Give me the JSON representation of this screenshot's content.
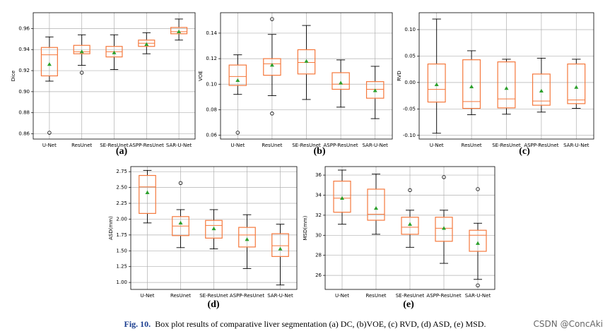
{
  "chart_data": [
    {
      "type": "box",
      "ylabel": "Dice",
      "label": "(a)",
      "categories": [
        "U-Net",
        "ResUnet",
        "SE-ResUnet",
        "ASPP-ResUnet",
        "SAR-U-Net"
      ],
      "whislo": [
        0.91,
        0.925,
        0.921,
        0.936,
        0.949
      ],
      "q1": [
        0.915,
        0.936,
        0.933,
        0.943,
        0.955
      ],
      "median": [
        0.935,
        0.938,
        0.938,
        0.946,
        0.957
      ],
      "q3": [
        0.942,
        0.944,
        0.943,
        0.949,
        0.961
      ],
      "whishi": [
        0.952,
        0.954,
        0.954,
        0.956,
        0.969
      ],
      "mean": [
        0.926,
        0.938,
        0.937,
        0.945,
        0.957
      ],
      "fliers": [
        [
          0.861
        ],
        [
          0.918
        ],
        [],
        [],
        []
      ],
      "ylim": [
        0.855,
        0.975
      ],
      "yticks": [
        0.86,
        0.88,
        {
          "value": 0.9,
          "label": "0.90"
        },
        0.92,
        0.94,
        0.96
      ],
      "box_color": "#f5783c",
      "mean_color": "#2ca02c",
      "grid": true
    },
    {
      "type": "box",
      "ylabel": "VOE",
      "label": "(b)",
      "categories": [
        "U-Net",
        "ResUnet",
        "SE-ResUnet",
        "ASPP-ResUnet",
        "SAR-U-Net"
      ],
      "whislo": [
        0.092,
        0.091,
        0.088,
        0.082,
        0.073
      ],
      "q1": [
        0.099,
        0.107,
        0.108,
        0.096,
        0.089
      ],
      "median": [
        0.106,
        0.116,
        0.117,
        0.1,
        0.096
      ],
      "q3": [
        0.115,
        0.12,
        0.127,
        0.109,
        0.102
      ],
      "whishi": [
        0.123,
        0.139,
        0.146,
        0.119,
        0.114
      ],
      "mean": [
        0.103,
        0.115,
        0.118,
        0.101,
        0.095
      ],
      "fliers": [
        [
          0.062
        ],
        [
          0.151,
          0.077
        ],
        [],
        [],
        []
      ],
      "ylim": [
        0.057,
        0.156
      ],
      "yticks": [
        0.06,
        0.08,
        {
          "value": 0.1,
          "label": "0.10"
        },
        0.12,
        0.14
      ],
      "box_color": "#f5783c",
      "mean_color": "#2ca02c",
      "grid": true
    },
    {
      "type": "box",
      "ylabel": "RVD",
      "label": "(c)",
      "categories": [
        "U-Net",
        "ResUnet",
        "SE-ResUnet",
        "ASPP-ResUnet",
        "SAR-U-Net"
      ],
      "whislo": [
        -0.096,
        -0.061,
        -0.06,
        -0.056,
        -0.049
      ],
      "q1": [
        -0.037,
        -0.049,
        -0.048,
        -0.043,
        -0.04
      ],
      "median": [
        -0.013,
        -0.036,
        -0.031,
        -0.035,
        -0.033
      ],
      "q3": [
        0.035,
        0.043,
        0.039,
        0.016,
        0.035
      ],
      "whishi": [
        0.12,
        0.06,
        0.044,
        0.046,
        0.044
      ],
      "mean": [
        -0.004,
        -0.008,
        -0.011,
        -0.016,
        -0.009
      ],
      "fliers": [
        [],
        [],
        [],
        [],
        []
      ],
      "ylim": [
        -0.107,
        0.132
      ],
      "yticks": [
        {
          "value": -0.1,
          "label": "-0.10"
        },
        {
          "value": -0.05,
          "label": "-0.05"
        },
        {
          "value": 0,
          "label": "0.00"
        },
        0.05,
        {
          "value": 0.1,
          "label": "0.10"
        }
      ],
      "box_color": "#f5783c",
      "mean_color": "#2ca02c",
      "grid": true
    },
    {
      "type": "box",
      "ylabel": "ASD(mm)",
      "label": "(d)",
      "categories": [
        "U-Net",
        "ResUnet",
        "SE-ResUnet",
        "ASPP-ResUnet",
        "SAR-U-Net"
      ],
      "whislo": [
        1.94,
        1.55,
        1.53,
        1.22,
        0.96
      ],
      "q1": [
        2.09,
        1.74,
        1.7,
        1.56,
        1.41
      ],
      "median": [
        2.51,
        1.89,
        1.9,
        1.75,
        1.58
      ],
      "q3": [
        2.69,
        2.04,
        1.98,
        1.87,
        1.77
      ],
      "whishi": [
        2.77,
        2.15,
        2.15,
        2.07,
        1.92
      ],
      "mean": [
        2.42,
        1.94,
        1.85,
        1.68,
        1.53
      ],
      "fliers": [
        [],
        [
          2.57
        ],
        [],
        [],
        []
      ],
      "ylim": [
        0.89,
        2.83
      ],
      "yticks": [
        {
          "value": 1,
          "label": "1.00"
        },
        1.25,
        {
          "value": 1.5,
          "label": "1.50"
        },
        1.75,
        {
          "value": 2,
          "label": "2.00"
        },
        2.25,
        {
          "value": 2.5,
          "label": "2.50"
        },
        2.75
      ],
      "box_color": "#f5783c",
      "mean_color": "#2ca02c",
      "grid": true
    },
    {
      "type": "box",
      "ylabel": "MSD(mm)",
      "label": "(e)",
      "categories": [
        "U-Net",
        "ResUnet",
        "SE-ResUnet",
        "ASPP-ResUnet",
        "SAR-U-Net"
      ],
      "whislo": [
        31.1,
        30.1,
        28.8,
        27.2,
        25.6
      ],
      "q1": [
        32.3,
        31.5,
        30.1,
        29.4,
        28.4
      ],
      "median": [
        33.7,
        32.1,
        30.8,
        30.7,
        30.0
      ],
      "q3": [
        35.4,
        34.6,
        31.8,
        31.8,
        30.5
      ],
      "whishi": [
        36.5,
        36.1,
        32.5,
        32.5,
        31.2
      ],
      "mean": [
        33.7,
        32.7,
        31.1,
        30.7,
        29.2
      ],
      "fliers": [
        [],
        [],
        [
          34.5
        ],
        [
          35.8
        ],
        [
          34.6,
          25.0
        ]
      ],
      "ylim": [
        24.6,
        36.85
      ],
      "yticks": [
        26,
        28,
        30,
        32,
        34,
        36
      ],
      "box_color": "#f5783c",
      "mean_color": "#2ca02c",
      "grid": true
    }
  ],
  "caption": {
    "label": "Fig. 10.",
    "text": "Box plot results of comparative liver segmentation (a) DC, (b)VOE, (c) RVD, (d) ASD, (e) MSD."
  },
  "watermark": "CSDN @ConcAki"
}
